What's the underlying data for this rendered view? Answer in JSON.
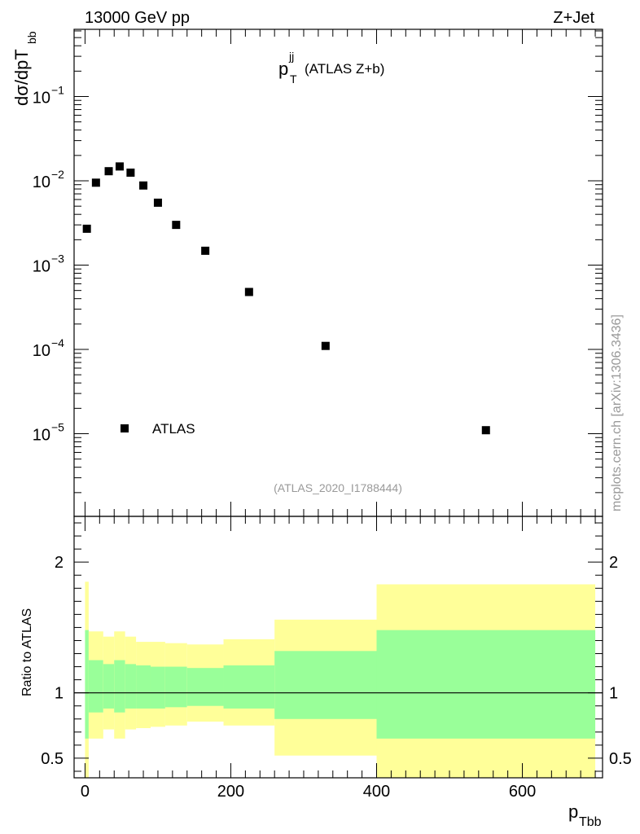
{
  "header": {
    "energy_label": "13000 GeV pp",
    "process_label": "Z+Jet"
  },
  "side_label": "mcplots.cern.ch [arXiv:1306.3436]",
  "analysis_label": "(ATLAS_2020_I1788444)",
  "colors": {
    "marker": "#000000",
    "band_inner": "#99ff99",
    "band_outer": "#ffff99",
    "text_gray": "#999999"
  },
  "chart_data": [
    {
      "type": "scatter",
      "title_main": "p",
      "title_sup": "jj",
      "title_sub": "T",
      "title_suffix": "(ATLAS Z+b)",
      "ylabel_main": "dσ/dpT",
      "ylabel_sub": "bb",
      "yscale": "log",
      "ylim": [
        1e-06,
        0.7
      ],
      "xlim": [
        -15,
        710
      ],
      "ytick_labels": [
        {
          "mant": "10",
          "exp": "−1"
        },
        {
          "mant": "10",
          "exp": "−2"
        },
        {
          "mant": "10",
          "exp": "−3"
        },
        {
          "mant": "10",
          "exp": "−4"
        },
        {
          "mant": "10",
          "exp": "−5"
        }
      ],
      "legend": {
        "label": "ATLAS",
        "position": "lower-left"
      },
      "series": [
        {
          "name": "ATLAS",
          "x": [
            2.5,
            15,
            32.5,
            47.5,
            62.5,
            80,
            100,
            125,
            165,
            225,
            330,
            550
          ],
          "y": [
            0.0027,
            0.0095,
            0.013,
            0.0148,
            0.0125,
            0.0088,
            0.0055,
            0.003,
            0.00148,
            0.00048,
            0.00011,
            1.1e-05
          ]
        }
      ]
    },
    {
      "type": "area",
      "ylabel": "Ratio to ATLAS",
      "xlabel_main": "p",
      "xlabel_sub": "Tbb",
      "xlim": [
        -15,
        710
      ],
      "ylim": [
        0.35,
        2.35
      ],
      "yticks": [
        0.5,
        1,
        2
      ],
      "ytick_labels": [
        "0.5",
        "1",
        "2"
      ],
      "xticks": [
        0,
        200,
        400,
        600
      ],
      "xtick_labels": [
        "0",
        "200",
        "400",
        "600"
      ],
      "reference_line": 1,
      "bins": [
        {
          "xlo": 0,
          "xhi": 5,
          "inner": [
            0.65,
            1.48
          ],
          "outer": [
            0.35,
            1.85
          ]
        },
        {
          "xlo": 5,
          "xhi": 25,
          "inner": [
            0.85,
            1.25
          ],
          "outer": [
            0.65,
            1.47
          ]
        },
        {
          "xlo": 25,
          "xhi": 40,
          "inner": [
            0.88,
            1.22
          ],
          "outer": [
            0.72,
            1.43
          ]
        },
        {
          "xlo": 40,
          "xhi": 55,
          "inner": [
            0.85,
            1.25
          ],
          "outer": [
            0.65,
            1.47
          ]
        },
        {
          "xlo": 55,
          "xhi": 70,
          "inner": [
            0.88,
            1.22
          ],
          "outer": [
            0.72,
            1.43
          ]
        },
        {
          "xlo": 70,
          "xhi": 90,
          "inner": [
            0.88,
            1.21
          ],
          "outer": [
            0.73,
            1.39
          ]
        },
        {
          "xlo": 90,
          "xhi": 110,
          "inner": [
            0.88,
            1.2
          ],
          "outer": [
            0.74,
            1.39
          ]
        },
        {
          "xlo": 110,
          "xhi": 140,
          "inner": [
            0.89,
            1.2
          ],
          "outer": [
            0.75,
            1.38
          ]
        },
        {
          "xlo": 140,
          "xhi": 190,
          "inner": [
            0.9,
            1.19
          ],
          "outer": [
            0.78,
            1.37
          ]
        },
        {
          "xlo": 190,
          "xhi": 260,
          "inner": [
            0.88,
            1.21
          ],
          "outer": [
            0.75,
            1.41
          ]
        },
        {
          "xlo": 260,
          "xhi": 400,
          "inner": [
            0.8,
            1.32
          ],
          "outer": [
            0.52,
            1.56
          ]
        },
        {
          "xlo": 400,
          "xhi": 700,
          "inner": [
            0.65,
            1.48
          ],
          "outer": [
            0.35,
            1.83
          ]
        }
      ]
    }
  ]
}
